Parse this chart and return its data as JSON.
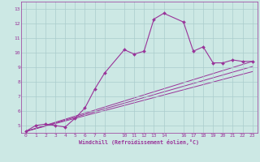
{
  "xlabel": "Windchill (Refroidissement éolien,°C)",
  "bg_color": "#cce8e4",
  "line_color": "#993399",
  "grid_color": "#aacccc",
  "text_color": "#993399",
  "spine_color": "#993399",
  "xlim": [
    -0.5,
    23.5
  ],
  "ylim": [
    4.5,
    13.5
  ],
  "xticks": [
    0,
    1,
    2,
    3,
    4,
    5,
    6,
    7,
    8,
    10,
    11,
    12,
    13,
    14,
    16,
    17,
    18,
    19,
    20,
    21,
    22,
    23
  ],
  "yticks": [
    5,
    6,
    7,
    8,
    9,
    10,
    11,
    12,
    13
  ],
  "main_x": [
    0,
    1,
    2,
    3,
    4,
    5,
    6,
    7,
    8,
    10,
    11,
    12,
    13,
    14,
    16,
    17,
    18,
    19,
    20,
    21,
    22,
    23
  ],
  "main_y": [
    4.6,
    5.0,
    5.1,
    5.0,
    4.9,
    5.5,
    6.2,
    7.5,
    8.6,
    10.2,
    9.9,
    10.1,
    12.3,
    12.7,
    12.1,
    10.1,
    10.4,
    9.3,
    9.3,
    9.5,
    9.4,
    9.4
  ],
  "line1_x": [
    0,
    23
  ],
  "line1_y": [
    4.6,
    9.4
  ],
  "line2_x": [
    0,
    23
  ],
  "line2_y": [
    4.6,
    8.7
  ],
  "line3_x": [
    0,
    23
  ],
  "line3_y": [
    4.6,
    9.05
  ]
}
